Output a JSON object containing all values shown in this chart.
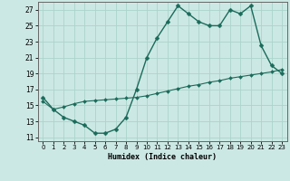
{
  "title": "",
  "xlabel": "Humidex (Indice chaleur)",
  "bg_color": "#cce8e4",
  "grid_color": "#aad4cc",
  "line_color": "#1a6b5a",
  "xlim": [
    -0.5,
    23.5
  ],
  "ylim": [
    10.5,
    28.0
  ],
  "xticks": [
    0,
    1,
    2,
    3,
    4,
    5,
    6,
    7,
    8,
    9,
    10,
    11,
    12,
    13,
    14,
    15,
    16,
    17,
    18,
    19,
    20,
    21,
    22,
    23
  ],
  "yticks": [
    11,
    13,
    15,
    17,
    19,
    21,
    23,
    25,
    27
  ],
  "line1_x": [
    0,
    1,
    2,
    3,
    4,
    5,
    6,
    7,
    8,
    9,
    10,
    11,
    12,
    13,
    14,
    15,
    16,
    17,
    18,
    19,
    20,
    21,
    22,
    23
  ],
  "line1_y": [
    16,
    14.5,
    13.5,
    13,
    12.5,
    11.5,
    11.5,
    12,
    13.5,
    17,
    21.0,
    23.5,
    25.5,
    27.5,
    26.5,
    25.5,
    25.0,
    25.0,
    27.0,
    26.5,
    27.5,
    22.5,
    20.0,
    19.0
  ],
  "line2_x": [
    0,
    1,
    2,
    3,
    4,
    5,
    6,
    7,
    8,
    9,
    10,
    11,
    12,
    13,
    14,
    15,
    16,
    17,
    18,
    19,
    20,
    21,
    22,
    23
  ],
  "line2_y": [
    15.5,
    14.5,
    14.8,
    15.2,
    15.5,
    15.6,
    15.7,
    15.8,
    15.9,
    16.0,
    16.2,
    16.5,
    16.8,
    17.1,
    17.4,
    17.6,
    17.9,
    18.1,
    18.4,
    18.6,
    18.8,
    19.0,
    19.2,
    19.5
  ]
}
